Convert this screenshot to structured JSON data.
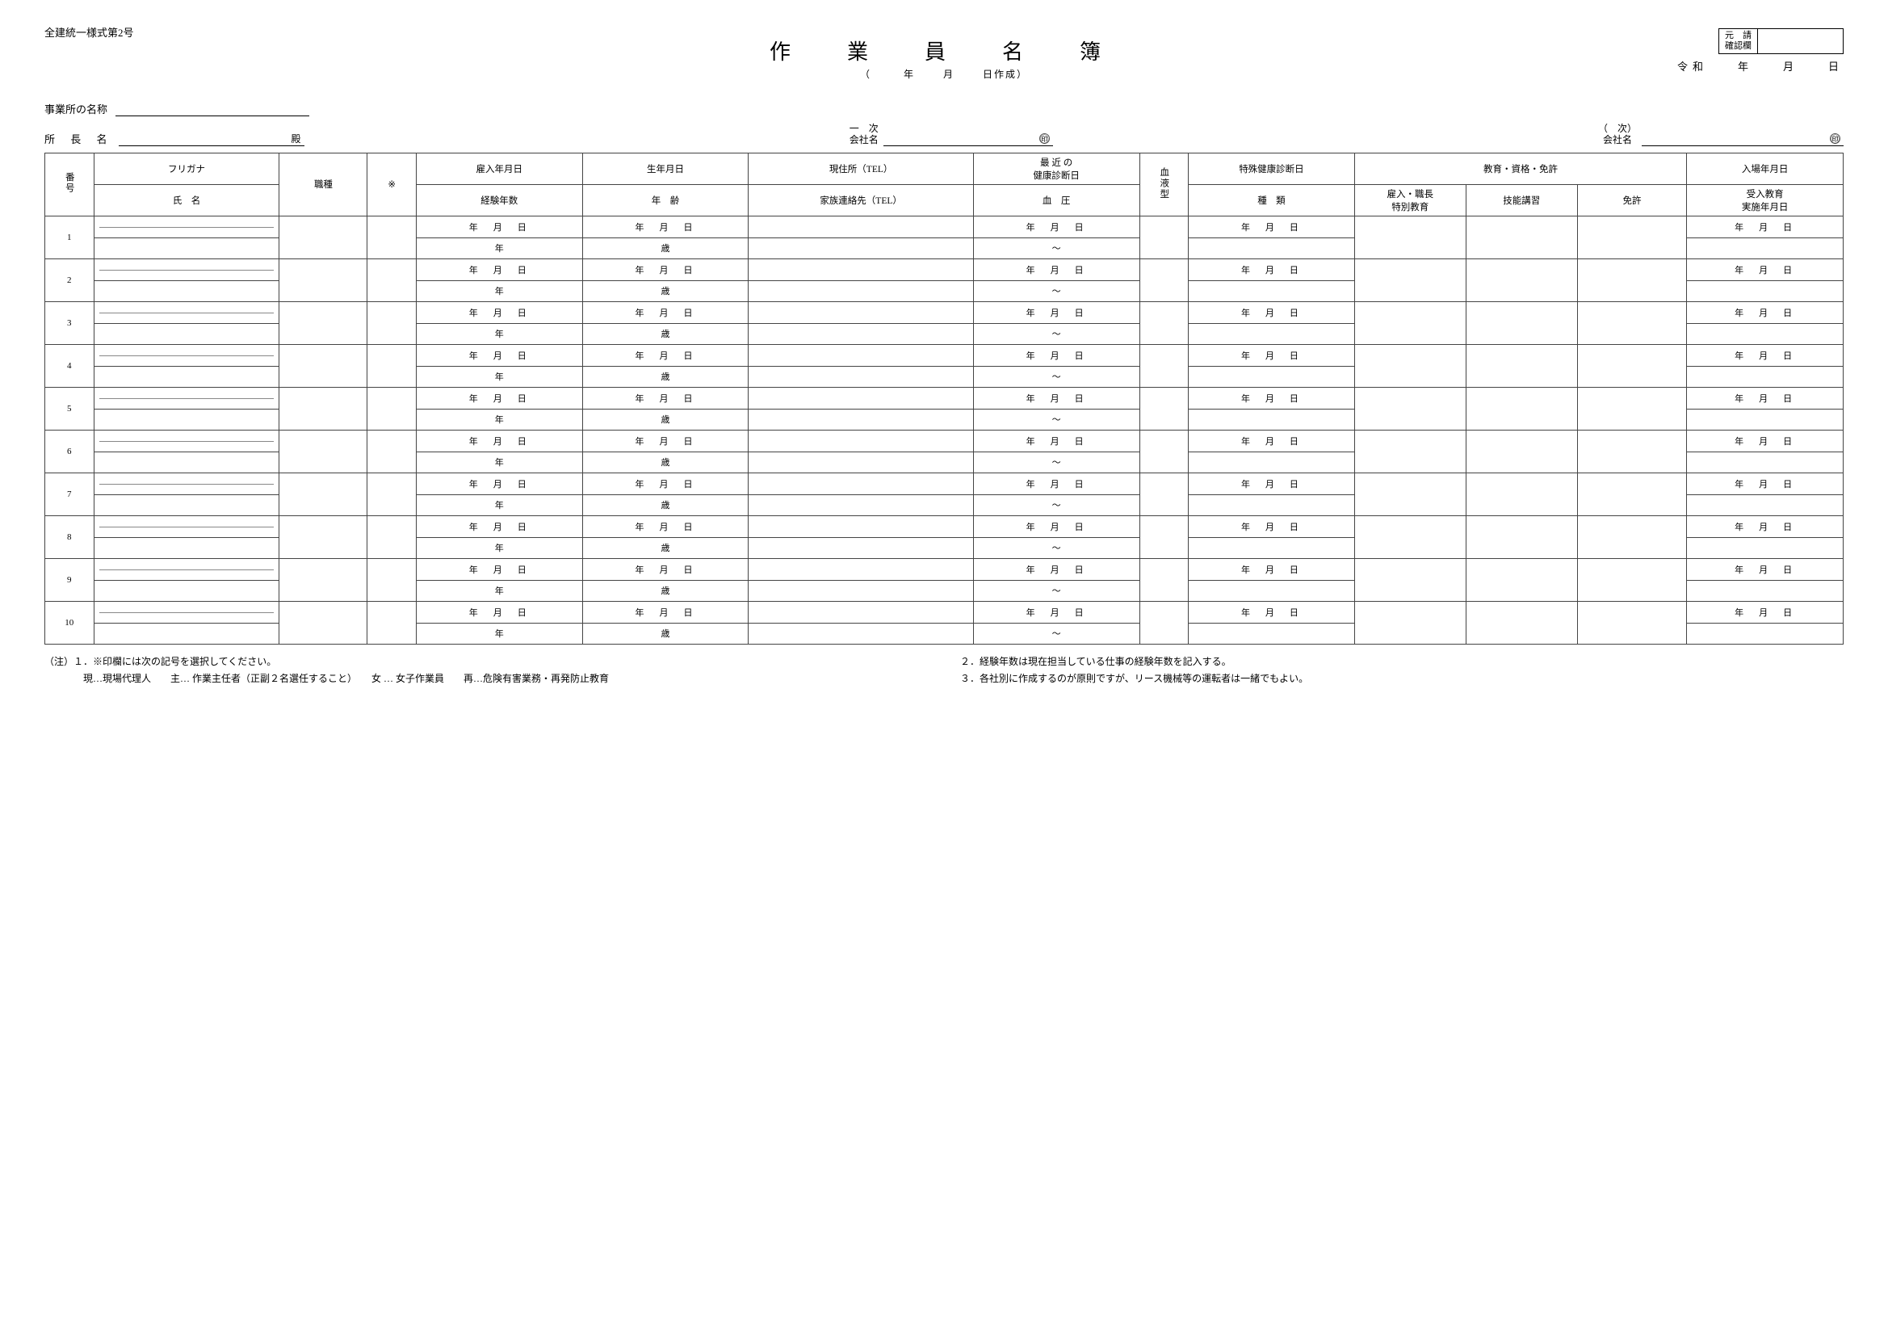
{
  "form_number": "全建統一様式第2号",
  "title": "作　業　員　名　簿",
  "title_sub_open": "（",
  "title_sub_year": "年",
  "title_sub_month": "月",
  "title_sub_day": "日作成）",
  "stamp_label_l1": "元　請",
  "stamp_label_l2": "確認欄",
  "reiwa_era": "令和",
  "y": "年",
  "m": "月",
  "d": "日",
  "office_label": "事業所の名称",
  "director_label": "所 長 名",
  "director_suffix": "殿",
  "primary_label_l1": "一　次",
  "primary_label_l2": "会社名",
  "secondary_label_l1": "（　次）",
  "secondary_label_l2": "会社名",
  "seal_mark": "㊞",
  "headers": {
    "no": "番号",
    "furigana": "フリガナ",
    "name": "氏　名",
    "job": "職種",
    "mark": "※",
    "hire_date": "雇入年月日",
    "exp_years": "経験年数",
    "birth": "生年月日",
    "age": "年　齢",
    "addr": "現住所（TEL）",
    "family": "家族連絡先（TEL）",
    "recent_exam_l1": "最 近 の",
    "recent_exam_l2": "健康診断日",
    "bp": "血　圧",
    "blood_type": "血液型",
    "special_exam": "特殊健康診断日",
    "special_type": "種　類",
    "education": "教育・資格・免許",
    "edu1_l1": "雇入・職長",
    "edu1_l2": "特別教育",
    "edu2": "技能講習",
    "edu3": "免許",
    "entry_date": "入場年月日",
    "accept_edu_l1": "受入教育",
    "accept_edu_l2": "実施年月日"
  },
  "row_labels": {
    "ymd": "年　月　日",
    "years_suffix": "年",
    "age_suffix": "歳",
    "tilde": "～"
  },
  "row_numbers": [
    "1",
    "2",
    "3",
    "4",
    "5",
    "6",
    "7",
    "8",
    "9",
    "10"
  ],
  "notes": {
    "n1": "（注）１．※印欄には次の記号を選択してください。",
    "n1b": "　　　　現…現場代理人　　主… 作業主任者（正副２名選任すること）　　女 … 女子作業員　　再…危険有害業務・再発防止教育",
    "n2": "２．経験年数は現在担当している仕事の経験年数を記入する。",
    "n3": "３．各社別に作成するのが原則ですが、リース機械等の運転者は一緒でもよい。"
  }
}
